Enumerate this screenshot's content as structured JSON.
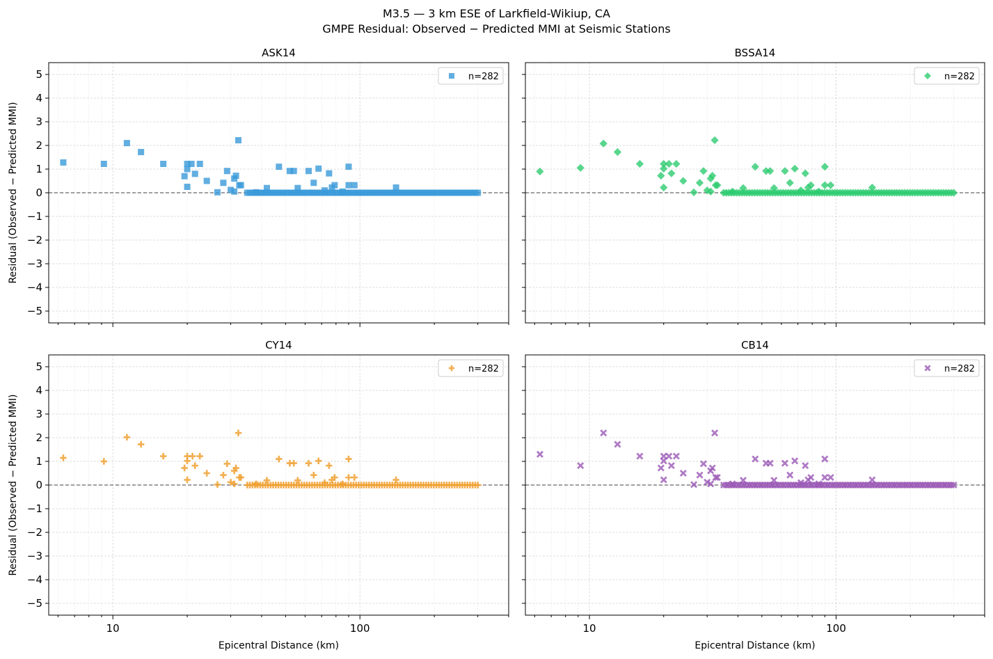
{
  "figure": {
    "title_line1": "M3.5 — 3 km ESE of Larkfield-Wikiup, CA",
    "title_line2": "GMPE Residual: Observed − Predicted MMI at Seismic Stations"
  },
  "chart_data": [
    {
      "type": "scatter",
      "title": "ASK14",
      "xlabel": "",
      "ylabel": "Residual (Observed − Predicted MMI)",
      "xscale": "log",
      "xlim": [
        5.5,
        400
      ],
      "ylim": [
        -5.5,
        5.5
      ],
      "xticks": [
        "10",
        "100"
      ],
      "yticks": [
        "5",
        "4",
        "3",
        "2",
        "1",
        "0",
        "−1",
        "−2",
        "−3",
        "−4",
        "−5"
      ],
      "grid": true,
      "legend": {
        "placement": "top-right",
        "label": "n=282"
      },
      "reference_line": 0,
      "marker": "square",
      "color": "#3a9ad9",
      "points": [
        [
          6.3,
          1.28
        ],
        [
          9.2,
          1.22
        ],
        [
          11.4,
          2.1
        ],
        [
          13,
          1.72
        ],
        [
          16,
          1.22
        ],
        [
          19.5,
          0.7
        ],
        [
          20,
          1.22
        ],
        [
          20,
          1.0
        ],
        [
          20,
          0.25
        ],
        [
          20.8,
          1.22
        ],
        [
          21.5,
          0.8
        ],
        [
          22.5,
          1.22
        ],
        [
          24,
          0.5
        ],
        [
          26.5,
          0.02
        ],
        [
          28,
          0.42
        ],
        [
          29,
          0.92
        ],
        [
          30,
          0.12
        ],
        [
          31,
          0.6
        ],
        [
          31,
          0.05
        ],
        [
          31.5,
          0.72
        ],
        [
          32.2,
          2.22
        ],
        [
          32.5,
          0.32
        ],
        [
          33,
          0.32
        ],
        [
          47,
          1.1
        ],
        [
          52,
          0.92
        ],
        [
          54,
          0.92
        ],
        [
          62,
          0.92
        ],
        [
          65,
          0.42
        ],
        [
          68,
          1.02
        ],
        [
          75,
          0.82
        ],
        [
          77,
          0.22
        ],
        [
          79,
          0.32
        ],
        [
          90,
          1.1
        ],
        [
          90,
          0.32
        ],
        [
          95,
          0.32
        ],
        [
          140,
          0.22
        ],
        [
          38,
          0.02
        ],
        [
          42,
          0.2
        ],
        [
          56,
          0.2
        ],
        [
          72,
          0.1
        ],
        [
          85,
          0.05
        ]
      ],
      "baseline_points": {
        "y": 0,
        "x_start": 35,
        "x_end": 300,
        "count": 90
      }
    },
    {
      "type": "scatter",
      "title": "BSSA14",
      "xlabel": "",
      "ylabel": "",
      "xscale": "log",
      "xlim": [
        5.5,
        400
      ],
      "ylim": [
        -5.5,
        5.5
      ],
      "xticks": [
        "10",
        "100"
      ],
      "yticks": [],
      "grid": true,
      "legend": {
        "placement": "top-right",
        "label": "n=282"
      },
      "reference_line": 0,
      "marker": "diamond",
      "color": "#2ecc71",
      "points": [
        [
          6.3,
          0.9
        ],
        [
          9.2,
          1.05
        ],
        [
          11.4,
          2.08
        ],
        [
          13,
          1.72
        ],
        [
          16,
          1.22
        ],
        [
          19.5,
          0.72
        ],
        [
          20,
          1.22
        ],
        [
          20,
          1.02
        ],
        [
          20,
          0.22
        ],
        [
          21,
          1.22
        ],
        [
          21.5,
          0.82
        ],
        [
          22.5,
          1.22
        ],
        [
          24,
          0.5
        ],
        [
          26.5,
          0.02
        ],
        [
          28,
          0.42
        ],
        [
          29,
          0.92
        ],
        [
          30,
          0.1
        ],
        [
          31,
          0.6
        ],
        [
          31,
          0.05
        ],
        [
          31.5,
          0.72
        ],
        [
          32.2,
          2.22
        ],
        [
          32.5,
          0.32
        ],
        [
          33,
          0.32
        ],
        [
          47,
          1.1
        ],
        [
          52,
          0.92
        ],
        [
          54,
          0.92
        ],
        [
          62,
          0.92
        ],
        [
          65,
          0.42
        ],
        [
          68,
          1.02
        ],
        [
          75,
          0.82
        ],
        [
          77,
          0.22
        ],
        [
          79,
          0.32
        ],
        [
          90,
          1.1
        ],
        [
          90,
          0.32
        ],
        [
          95,
          0.32
        ],
        [
          140,
          0.22
        ],
        [
          38,
          0.05
        ],
        [
          42,
          0.2
        ],
        [
          56,
          0.2
        ],
        [
          72,
          0.1
        ],
        [
          85,
          0.05
        ]
      ],
      "baseline_points": {
        "y": 0,
        "x_start": 35,
        "x_end": 300,
        "count": 90
      }
    },
    {
      "type": "scatter",
      "title": "CY14",
      "xlabel": "Epicentral Distance (km)",
      "ylabel": "Residual (Observed − Predicted MMI)",
      "xscale": "log",
      "xlim": [
        5.5,
        400
      ],
      "ylim": [
        -5.5,
        5.5
      ],
      "xticks": [
        "10",
        "100"
      ],
      "yticks": [
        "5",
        "4",
        "3",
        "2",
        "1",
        "0",
        "−1",
        "−2",
        "−3",
        "−4",
        "−5"
      ],
      "grid": true,
      "legend": {
        "placement": "top-right",
        "label": "n=282"
      },
      "reference_line": 0,
      "marker": "plus",
      "color": "#f0a030",
      "points": [
        [
          6.3,
          1.15
        ],
        [
          9.2,
          1.0
        ],
        [
          11.4,
          2.02
        ],
        [
          13,
          1.72
        ],
        [
          16,
          1.22
        ],
        [
          19.5,
          0.72
        ],
        [
          20,
          1.22
        ],
        [
          20,
          1.02
        ],
        [
          20,
          0.22
        ],
        [
          21,
          1.22
        ],
        [
          21.5,
          0.82
        ],
        [
          22.5,
          1.22
        ],
        [
          24,
          0.5
        ],
        [
          26.5,
          0.02
        ],
        [
          28,
          0.42
        ],
        [
          29,
          0.9
        ],
        [
          30,
          0.12
        ],
        [
          31,
          0.6
        ],
        [
          31,
          0.05
        ],
        [
          31.5,
          0.72
        ],
        [
          32.2,
          2.2
        ],
        [
          32.5,
          0.32
        ],
        [
          33,
          0.32
        ],
        [
          47,
          1.1
        ],
        [
          52,
          0.92
        ],
        [
          54,
          0.92
        ],
        [
          62,
          0.92
        ],
        [
          65,
          0.42
        ],
        [
          68,
          1.02
        ],
        [
          75,
          0.82
        ],
        [
          77,
          0.22
        ],
        [
          79,
          0.32
        ],
        [
          90,
          1.1
        ],
        [
          90,
          0.32
        ],
        [
          95,
          0.32
        ],
        [
          140,
          0.22
        ],
        [
          38,
          0.05
        ],
        [
          42,
          0.2
        ],
        [
          56,
          0.2
        ],
        [
          72,
          0.1
        ],
        [
          85,
          0.05
        ]
      ],
      "baseline_points": {
        "y": 0,
        "x_start": 35,
        "x_end": 300,
        "count": 90
      }
    },
    {
      "type": "scatter",
      "title": "CB14",
      "xlabel": "Epicentral Distance (km)",
      "ylabel": "",
      "xscale": "log",
      "xlim": [
        5.5,
        400
      ],
      "ylim": [
        -5.5,
        5.5
      ],
      "xticks": [
        "10",
        "100"
      ],
      "yticks": [],
      "grid": true,
      "legend": {
        "placement": "top-right",
        "label": "n=282"
      },
      "reference_line": 0,
      "marker": "x",
      "color": "#9b59b6",
      "points": [
        [
          6.3,
          1.3
        ],
        [
          9.2,
          0.82
        ],
        [
          11.4,
          2.2
        ],
        [
          13,
          1.72
        ],
        [
          16,
          1.22
        ],
        [
          19.5,
          0.72
        ],
        [
          20,
          1.22
        ],
        [
          20,
          1.02
        ],
        [
          20,
          0.22
        ],
        [
          21,
          1.22
        ],
        [
          21.5,
          0.82
        ],
        [
          22.5,
          1.22
        ],
        [
          24,
          0.5
        ],
        [
          26.5,
          0.02
        ],
        [
          28,
          0.42
        ],
        [
          29,
          0.9
        ],
        [
          30,
          0.12
        ],
        [
          31,
          0.6
        ],
        [
          31,
          0.05
        ],
        [
          31.5,
          0.72
        ],
        [
          32.2,
          2.2
        ],
        [
          32.5,
          0.32
        ],
        [
          33,
          0.32
        ],
        [
          47,
          1.1
        ],
        [
          52,
          0.92
        ],
        [
          54,
          0.92
        ],
        [
          62,
          0.92
        ],
        [
          65,
          0.42
        ],
        [
          68,
          1.02
        ],
        [
          75,
          0.82
        ],
        [
          77,
          0.22
        ],
        [
          79,
          0.32
        ],
        [
          90,
          1.1
        ],
        [
          90,
          0.32
        ],
        [
          95,
          0.32
        ],
        [
          140,
          0.22
        ],
        [
          38,
          0.05
        ],
        [
          42,
          0.2
        ],
        [
          56,
          0.2
        ],
        [
          72,
          0.1
        ],
        [
          85,
          0.05
        ]
      ],
      "baseline_points": {
        "y": 0,
        "x_start": 35,
        "x_end": 300,
        "count": 90
      }
    }
  ]
}
